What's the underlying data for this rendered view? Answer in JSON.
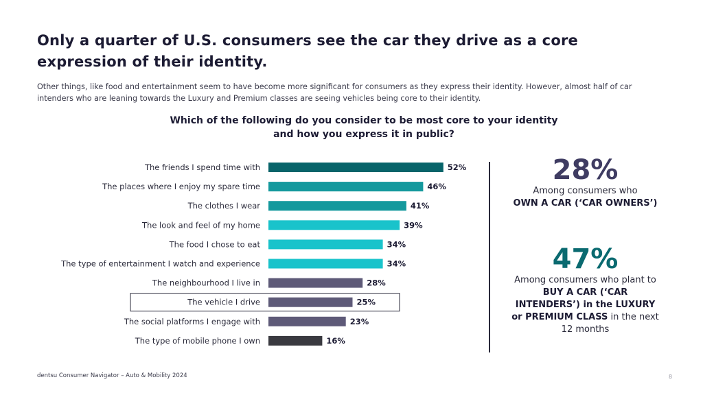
{
  "header": {
    "title": "Only a quarter of U.S. consumers see the car they drive as a core expression of their identity.",
    "subtitle": "Other things, like food and entertainment seem to have become more significant for consumers as they express their identity. However, almost half of car intenders who are leaning towards the Luxury and Premium classes are seeing vehicles being core to their identity."
  },
  "question": {
    "line1": "Which of the following do you consider to be most core to your identity",
    "line2": "and how you express it in public?"
  },
  "chart_data": {
    "type": "bar",
    "orientation": "horizontal",
    "title": "Which of the following do you consider to be most core to your identity and how you express it in public?",
    "value_suffix": "%",
    "xlim": [
      0,
      60
    ],
    "grid": false,
    "highlighted_category": "The vehicle I drive",
    "categories": [
      "The friends I spend time with",
      "The places where I enjoy my spare time",
      "The clothes I wear",
      "The look and feel of my home",
      "The food I chose to eat",
      "The type of entertainment I watch and experience",
      "The neighbourhood I live in",
      "The vehicle I drive",
      "The social platforms I engage with",
      "The type of mobile phone I own"
    ],
    "values": [
      52,
      46,
      41,
      39,
      34,
      34,
      28,
      25,
      23,
      16
    ],
    "colors": [
      "#08646a",
      "#14999d",
      "#14999d",
      "#19c3cb",
      "#19c3cb",
      "#19c3cb",
      "#5e5a78",
      "#5e5a78",
      "#5e5a78",
      "#3a3a40"
    ]
  },
  "stats": [
    {
      "value": "28%",
      "color": "#3f3c62",
      "desc_plain": "Among consumers who",
      "desc_bold": "OWN A CAR (‘CAR OWNERS’)",
      "desc_after": ""
    },
    {
      "value": "47%",
      "color": "#0a6a70",
      "desc_plain": "Among consumers who plant to",
      "desc_bold": "BUY A CAR (‘CAR INTENDERS’) in the LUXURY or PREMIUM CLASS",
      "desc_after": "in the next 12 months"
    }
  ],
  "footer": {
    "source": "dentsu Consumer Navigator – Auto & Mobility 2024",
    "page_number": "8"
  }
}
